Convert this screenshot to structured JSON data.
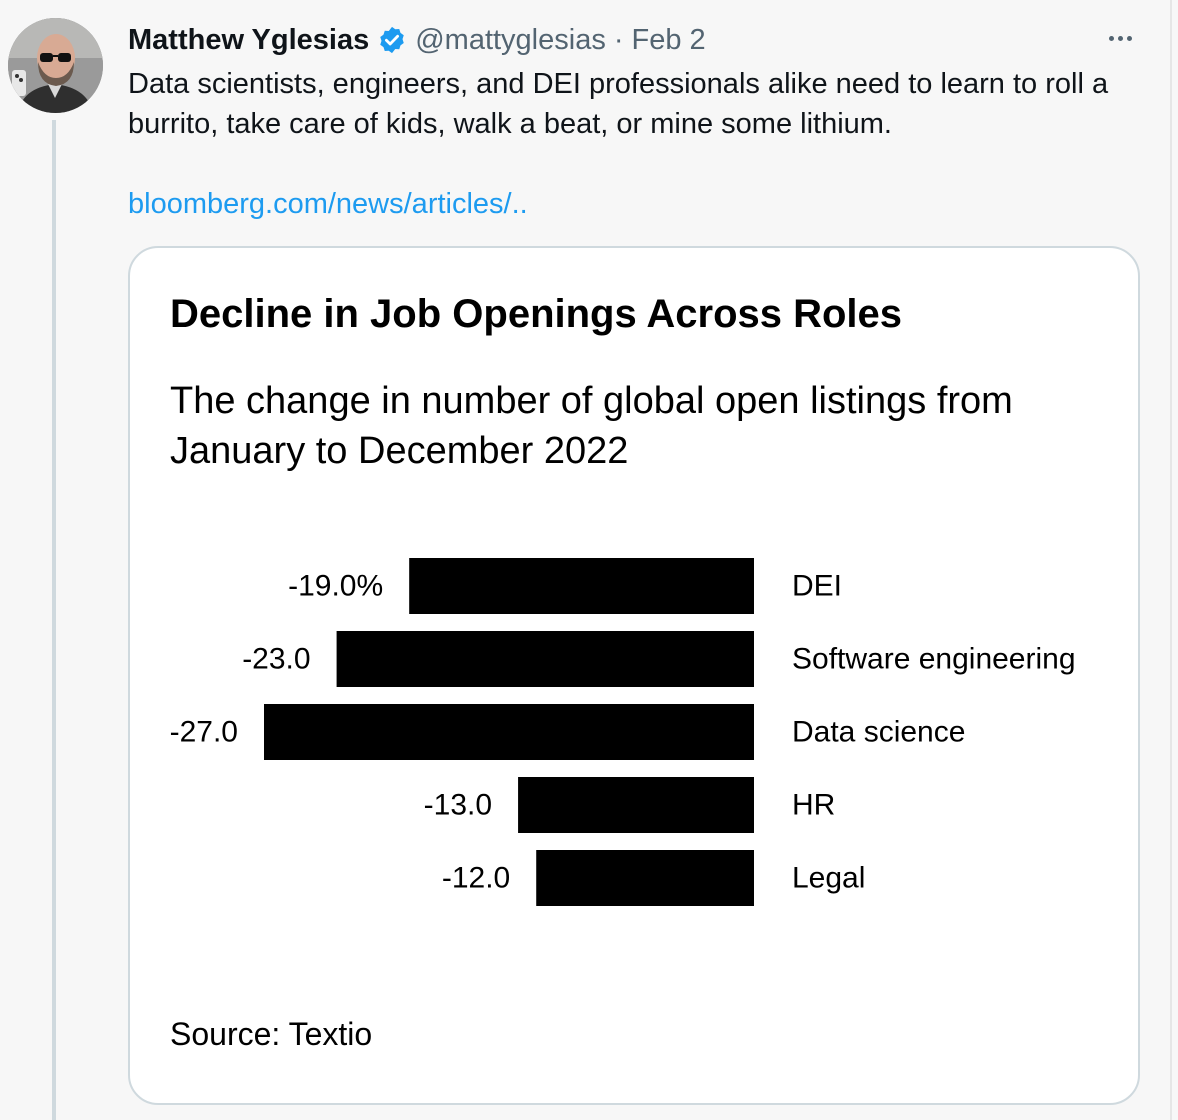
{
  "tweet": {
    "author_name": "Matthew Yglesias",
    "handle": "@mattyglesias",
    "separator": "·",
    "date": "Feb 2",
    "text": "Data scientists, engineers, and DEI professionals alike need to learn to roll a burrito, take care of kids, walk a beat, or mine some lithium.",
    "link_text": "bloomberg.com/news/articles/..",
    "verified": true,
    "icons": {
      "verified": "verified-badge-icon",
      "more": "more-options-icon"
    },
    "colors": {
      "link": "#1d9bf0",
      "verified_badge": "#1d9bf0",
      "secondary_text": "#536471",
      "bar": "#000000"
    }
  },
  "card": {
    "title": "Decline in Job Openings Across Roles",
    "subtitle": "The change in number of global open listings from January to December 2022",
    "source": "Source: Textio"
  },
  "chart_data": {
    "type": "bar",
    "orientation": "horizontal",
    "title": "Decline in Job Openings Across Roles",
    "subtitle": "The change in number of global open listings from January to December 2022",
    "categories": [
      "DEI",
      "Software engineering",
      "Data science",
      "HR",
      "Legal"
    ],
    "values": [
      -19.0,
      -23.0,
      -27.0,
      -13.0,
      -12.0
    ],
    "value_labels": [
      "-19.0%",
      "-23.0",
      "-27.0",
      "-13.0",
      "-12.0"
    ],
    "unit": "%",
    "xlim": [
      -27,
      0
    ],
    "grid": false,
    "legend": "none",
    "source": "Source: Textio"
  }
}
